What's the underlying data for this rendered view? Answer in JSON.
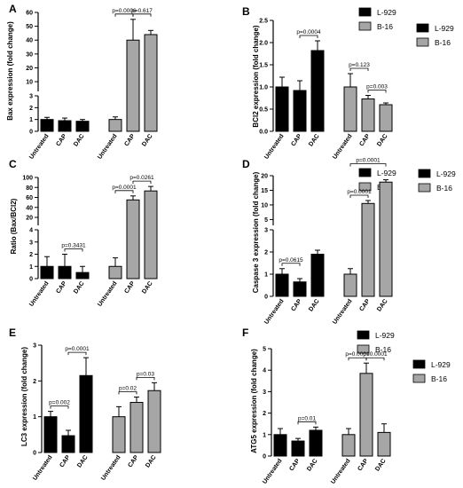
{
  "figure": {
    "series": [
      {
        "name": "L-929",
        "color": "#000000"
      },
      {
        "name": "B-16",
        "color": "#a6a6a6"
      }
    ]
  },
  "chart_data": [
    {
      "panel": "A",
      "type": "bar",
      "ylabel": "Bax expression (fold change)",
      "categories": [
        "Untreated",
        "CAP",
        "DAC"
      ],
      "broken_axis": {
        "lower": [
          0,
          3
        ],
        "upper": [
          3,
          60
        ]
      },
      "yticks_lower": [
        "0",
        "1",
        "2",
        "3"
      ],
      "yticks_upper": [
        "10",
        "20",
        "30",
        "40",
        "50",
        "60"
      ],
      "series": [
        {
          "name": "L-929",
          "values": [
            1.0,
            0.9,
            0.85
          ],
          "errors": [
            0.18,
            0.22,
            0.15
          ]
        },
        {
          "name": "B-16",
          "values": [
            1.0,
            40,
            44
          ],
          "errors": [
            0.22,
            15,
            3
          ]
        }
      ],
      "comparisons": [
        {
          "series": "B-16",
          "from": 0,
          "to": 1,
          "label": "p=0.0006"
        },
        {
          "series": "B-16",
          "from": 1,
          "to": 2,
          "label": "p=0.617"
        }
      ]
    },
    {
      "panel": "B",
      "type": "bar",
      "ylabel": "BCl2 expression (fold change)",
      "categories": [
        "Untreated",
        "CAP",
        "DAC"
      ],
      "ylim": [
        0,
        2.5
      ],
      "yticks": [
        "0.0",
        "0.5",
        "1.0",
        "1.5",
        "2.0",
        "2.5"
      ],
      "series": [
        {
          "name": "L-929",
          "values": [
            1.0,
            0.92,
            1.82
          ],
          "errors": [
            0.22,
            0.22,
            0.22
          ]
        },
        {
          "name": "B-16",
          "values": [
            1.0,
            0.73,
            0.6
          ],
          "errors": [
            0.3,
            0.08,
            0.04
          ]
        }
      ],
      "comparisons": [
        {
          "series": "L-929",
          "from": 1,
          "to": 2,
          "label": "p=0.0004"
        },
        {
          "series": "B-16",
          "from": 0,
          "to": 1,
          "label": "p=0.123"
        },
        {
          "series": "B-16",
          "from": 1,
          "to": 2,
          "label": "p=0.003"
        }
      ]
    },
    {
      "panel": "C",
      "type": "bar",
      "ylabel": "Ratio (Bax/BCl2)",
      "categories": [
        "Untreated",
        "CAP",
        "DAC"
      ],
      "broken_axis": {
        "lower": [
          0,
          4
        ],
        "upper": [
          4,
          100
        ]
      },
      "yticks_lower": [
        "0",
        "1",
        "2",
        "3",
        "4"
      ],
      "yticks_upper": [
        "20",
        "40",
        "60",
        "80",
        "100"
      ],
      "series": [
        {
          "name": "L-929",
          "values": [
            1.0,
            1.0,
            0.5
          ],
          "errors": [
            0.8,
            1.0,
            0.5
          ]
        },
        {
          "name": "B-16",
          "values": [
            1.0,
            55,
            73
          ],
          "errors": [
            0.7,
            8,
            9
          ]
        }
      ],
      "comparisons": [
        {
          "series": "L-929",
          "from": 1,
          "to": 2,
          "label": "p=0.3431"
        },
        {
          "series": "B-16",
          "from": 0,
          "to": 1,
          "label": "p=0.0001"
        },
        {
          "series": "B-16",
          "from": 1,
          "to": 2,
          "label": "p=0.0261"
        }
      ]
    },
    {
      "panel": "D",
      "type": "bar",
      "ylabel": "Caspase 3 expression (fold change)",
      "categories": [
        "Untreated",
        "CAP",
        "DAC"
      ],
      "broken_axis": {
        "lower": [
          0,
          3
        ],
        "upper": [
          3,
          20
        ]
      },
      "yticks_lower": [
        "0",
        "1",
        "2",
        "3"
      ],
      "yticks_upper": [
        "5",
        "10",
        "15",
        "20"
      ],
      "series": [
        {
          "name": "L-929",
          "values": [
            1.0,
            0.65,
            1.9
          ],
          "errors": [
            0.25,
            0.15,
            0.18
          ]
        },
        {
          "name": "B-16",
          "values": [
            1.0,
            10.5,
            17.8
          ],
          "errors": [
            0.25,
            1,
            0.8
          ]
        }
      ],
      "comparisons": [
        {
          "series": "L-929",
          "from": 0,
          "to": 1,
          "label": "p=0.0615"
        },
        {
          "series": "B-16",
          "from": 0,
          "to": 1,
          "label": "p=0.0001"
        },
        {
          "series": "B-16",
          "from": 0,
          "to": 2,
          "label": "p=0.0001"
        }
      ]
    },
    {
      "panel": "E",
      "type": "bar",
      "ylabel": "LC3 expression (fold change)",
      "categories": [
        "Untreated",
        "CAP",
        "DAC"
      ],
      "ylim": [
        0,
        3
      ],
      "yticks": [
        "0",
        "1",
        "2",
        "3"
      ],
      "series": [
        {
          "name": "L-929",
          "values": [
            1.0,
            0.47,
            2.15
          ],
          "errors": [
            0.15,
            0.15,
            0.5
          ]
        },
        {
          "name": "B-16",
          "values": [
            1.0,
            1.4,
            1.73
          ],
          "errors": [
            0.28,
            0.15,
            0.22
          ]
        }
      ],
      "comparisons": [
        {
          "series": "L-929",
          "from": 0,
          "to": 1,
          "label": "p=0.002"
        },
        {
          "series": "L-929",
          "from": 1,
          "to": 2,
          "label": "p=0.0001"
        },
        {
          "series": "B-16",
          "from": 0,
          "to": 1,
          "label": "p=0.02"
        },
        {
          "series": "B-16",
          "from": 1,
          "to": 2,
          "label": "p=0.03"
        }
      ]
    },
    {
      "panel": "F",
      "type": "bar",
      "ylabel": "ATG5 expression (fold change)",
      "categories": [
        "Untreated",
        "CAP",
        "DAC"
      ],
      "ylim": [
        0,
        5
      ],
      "yticks": [
        "0",
        "1",
        "2",
        "3",
        "4",
        "5"
      ],
      "series": [
        {
          "name": "L-929",
          "values": [
            1.0,
            0.7,
            1.2
          ],
          "errors": [
            0.28,
            0.12,
            0.15
          ]
        },
        {
          "name": "B-16",
          "values": [
            1.0,
            3.85,
            1.1
          ],
          "errors": [
            0.28,
            0.48,
            0.4
          ]
        }
      ],
      "comparisons": [
        {
          "series": "L-929",
          "from": 1,
          "to": 2,
          "label": "p=0.01"
        },
        {
          "series": "B-16",
          "from": 0,
          "to": 1,
          "label": "p=0.0001"
        },
        {
          "series": "B-16",
          "from": 1,
          "to": 2,
          "label": "p=0.0001"
        }
      ]
    }
  ]
}
